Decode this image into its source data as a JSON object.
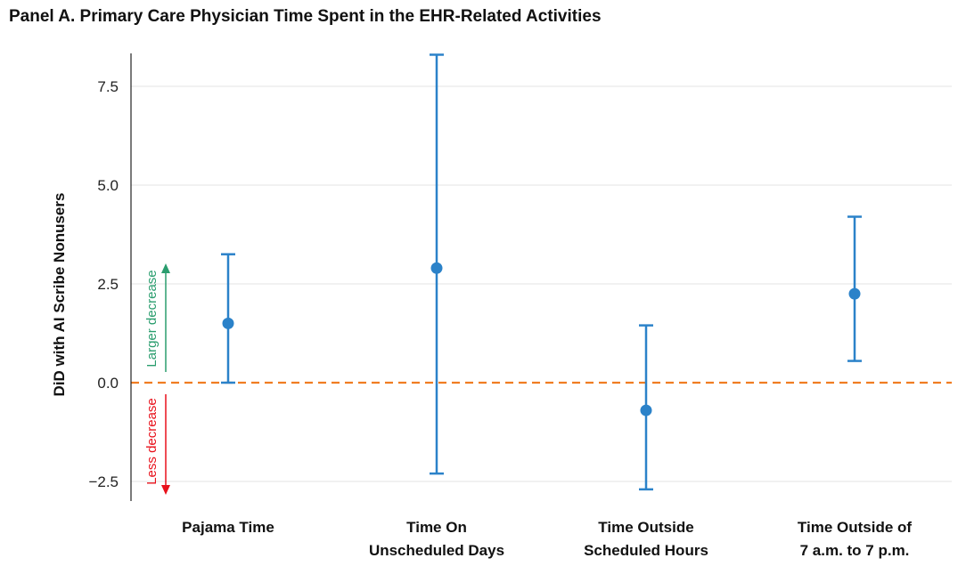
{
  "chart_data": {
    "type": "errorbar",
    "title": "Panel A. Primary Care Physician Time Spent in the EHR-Related Activities",
    "ylabel": "DiD with AI Scribe Nonusers",
    "xlabel": "",
    "ylim": [
      -3.0,
      8.5
    ],
    "yticks": [
      -2.5,
      0.0,
      2.5,
      5.0,
      7.5
    ],
    "ytick_labels": [
      "−2.5",
      "0.0",
      "2.5",
      "5.0",
      "7.5"
    ],
    "grid": true,
    "categories": [
      [
        "Pajama Time"
      ],
      [
        "Time On",
        "Unscheduled Days"
      ],
      [
        "Time Outside",
        "Scheduled Hours"
      ],
      [
        "Time Outside of",
        "7 a.m. to 7 p.m."
      ]
    ],
    "points": [
      {
        "estimate": 1.5,
        "lower": 0.0,
        "upper": 3.25
      },
      {
        "estimate": 2.9,
        "lower": -2.3,
        "upper": 8.3
      },
      {
        "estimate": -0.7,
        "lower": -2.7,
        "upper": 1.45
      },
      {
        "estimate": 2.25,
        "lower": 0.55,
        "upper": 4.2
      }
    ],
    "reference_line": {
      "y": 0.0,
      "style": "dashed",
      "color": "#f07d22"
    },
    "annotations": {
      "up_label": "Larger decrease",
      "down_label": "Less decrease",
      "up_color": "#2a9d6e",
      "down_color": "#e8111b"
    },
    "colors": {
      "marker": "#2b82c9",
      "grid": "#e3e3e3"
    }
  }
}
